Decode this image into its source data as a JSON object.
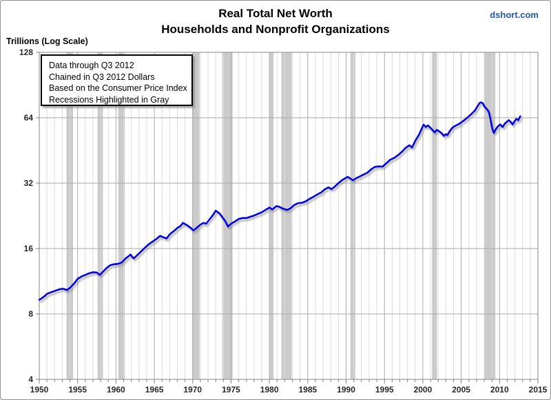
{
  "chart_data": {
    "type": "line",
    "title": "Real Total Net Worth",
    "subtitle": "Households and Nonprofit Organizations",
    "watermark": "dshort.com",
    "ylabel": "Trillions (Log Scale)",
    "y_scale": "log2",
    "x_range": [
      1950,
      2015
    ],
    "y_range": [
      4,
      128
    ],
    "y_ticks": [
      4,
      8,
      16,
      32,
      64,
      128
    ],
    "x_tick_step_major": 5,
    "x_tick_step_minor": 1,
    "grid": true,
    "legend_position": "none",
    "annotation": [
      "Data through  Q3 2012",
      "Chained in Q3 2012 Dollars",
      "Based on the Consumer Price Index",
      "Recessions Highlighted in Gray"
    ],
    "recessions": [
      [
        1953.55,
        1954.4
      ],
      [
        1957.6,
        1958.3
      ],
      [
        1960.3,
        1961.15
      ],
      [
        1969.95,
        1970.9
      ],
      [
        1973.85,
        1975.2
      ],
      [
        1980.05,
        1980.55
      ],
      [
        1981.55,
        1982.9
      ],
      [
        1990.55,
        1991.2
      ],
      [
        2001.2,
        2001.85
      ],
      [
        2007.95,
        2009.45
      ]
    ],
    "series": [
      {
        "name": "Real Total Net Worth (trillions of Q3 2012 dollars)",
        "color": "#0000E0",
        "points": [
          [
            1950.0,
            9.3
          ],
          [
            1950.25,
            9.4
          ],
          [
            1950.5,
            9.55
          ],
          [
            1950.75,
            9.7
          ],
          [
            1951.0,
            9.9
          ],
          [
            1951.5,
            10.05
          ],
          [
            1952.0,
            10.2
          ],
          [
            1952.5,
            10.35
          ],
          [
            1953.0,
            10.45
          ],
          [
            1953.3,
            10.4
          ],
          [
            1953.6,
            10.3
          ],
          [
            1954.0,
            10.55
          ],
          [
            1954.5,
            11.0
          ],
          [
            1955.0,
            11.6
          ],
          [
            1955.5,
            11.9
          ],
          [
            1956.0,
            12.1
          ],
          [
            1956.5,
            12.3
          ],
          [
            1957.0,
            12.45
          ],
          [
            1957.5,
            12.4
          ],
          [
            1957.9,
            12.1
          ],
          [
            1958.3,
            12.5
          ],
          [
            1958.75,
            13.0
          ],
          [
            1959.25,
            13.4
          ],
          [
            1959.75,
            13.55
          ],
          [
            1960.25,
            13.6
          ],
          [
            1960.75,
            13.8
          ],
          [
            1961.25,
            14.4
          ],
          [
            1961.6,
            14.7
          ],
          [
            1961.9,
            15.0
          ],
          [
            1962.3,
            14.4
          ],
          [
            1962.75,
            14.9
          ],
          [
            1963.25,
            15.5
          ],
          [
            1963.75,
            16.1
          ],
          [
            1964.25,
            16.7
          ],
          [
            1964.75,
            17.2
          ],
          [
            1965.25,
            17.7
          ],
          [
            1965.75,
            18.3
          ],
          [
            1966.25,
            18.0
          ],
          [
            1966.6,
            17.8
          ],
          [
            1967.0,
            18.6
          ],
          [
            1967.5,
            19.2
          ],
          [
            1968.0,
            19.9
          ],
          [
            1968.4,
            20.3
          ],
          [
            1968.75,
            21.0
          ],
          [
            1969.25,
            20.5
          ],
          [
            1969.75,
            19.9
          ],
          [
            1970.1,
            19.4
          ],
          [
            1970.5,
            19.9
          ],
          [
            1971.0,
            20.6
          ],
          [
            1971.4,
            21.0
          ],
          [
            1971.75,
            20.8
          ],
          [
            1972.25,
            21.9
          ],
          [
            1972.75,
            23.1
          ],
          [
            1973.0,
            23.9
          ],
          [
            1973.5,
            23.2
          ],
          [
            1974.0,
            22.0
          ],
          [
            1974.3,
            21.2
          ],
          [
            1974.6,
            20.2
          ],
          [
            1975.0,
            20.8
          ],
          [
            1975.5,
            21.3
          ],
          [
            1976.0,
            21.9
          ],
          [
            1976.5,
            22.1
          ],
          [
            1977.0,
            22.1
          ],
          [
            1977.5,
            22.4
          ],
          [
            1978.0,
            22.7
          ],
          [
            1978.5,
            23.1
          ],
          [
            1979.0,
            23.5
          ],
          [
            1979.5,
            24.1
          ],
          [
            1980.0,
            24.7
          ],
          [
            1980.4,
            24.2
          ],
          [
            1980.9,
            25.1
          ],
          [
            1981.3,
            24.9
          ],
          [
            1981.8,
            24.4
          ],
          [
            1982.3,
            24.1
          ],
          [
            1982.75,
            24.5
          ],
          [
            1983.25,
            25.4
          ],
          [
            1983.75,
            25.9
          ],
          [
            1984.25,
            26.0
          ],
          [
            1984.75,
            26.4
          ],
          [
            1985.25,
            27.1
          ],
          [
            1985.75,
            27.7
          ],
          [
            1986.25,
            28.4
          ],
          [
            1986.75,
            29.0
          ],
          [
            1987.25,
            30.0
          ],
          [
            1987.7,
            30.6
          ],
          [
            1988.1,
            30.0
          ],
          [
            1988.5,
            30.8
          ],
          [
            1989.0,
            32.0
          ],
          [
            1989.5,
            33.1
          ],
          [
            1990.2,
            34.2
          ],
          [
            1990.9,
            33.0
          ],
          [
            1991.3,
            33.7
          ],
          [
            1991.75,
            34.3
          ],
          [
            1992.25,
            35.0
          ],
          [
            1992.75,
            35.7
          ],
          [
            1993.25,
            37.0
          ],
          [
            1993.75,
            38.0
          ],
          [
            1994.25,
            38.2
          ],
          [
            1994.75,
            38.1
          ],
          [
            1995.25,
            39.5
          ],
          [
            1995.75,
            41.0
          ],
          [
            1996.25,
            41.8
          ],
          [
            1996.75,
            43.0
          ],
          [
            1997.25,
            44.5
          ],
          [
            1997.75,
            46.5
          ],
          [
            1998.25,
            47.8
          ],
          [
            1998.6,
            46.7
          ],
          [
            1999.0,
            50.0
          ],
          [
            1999.5,
            53.5
          ],
          [
            1999.9,
            57.5
          ],
          [
            2000.1,
            59.5
          ],
          [
            2000.4,
            58.0
          ],
          [
            2000.65,
            59.0
          ],
          [
            2001.0,
            57.5
          ],
          [
            2001.3,
            56.0
          ],
          [
            2001.55,
            54.8
          ],
          [
            2001.8,
            56.3
          ],
          [
            2002.1,
            55.5
          ],
          [
            2002.4,
            54.5
          ],
          [
            2002.75,
            52.8
          ],
          [
            2003.0,
            53.8
          ],
          [
            2003.2,
            53.2
          ],
          [
            2003.5,
            55.5
          ],
          [
            2003.9,
            57.8
          ],
          [
            2004.25,
            58.8
          ],
          [
            2004.75,
            60.0
          ],
          [
            2005.25,
            61.8
          ],
          [
            2005.75,
            63.8
          ],
          [
            2006.25,
            66.2
          ],
          [
            2006.75,
            68.8
          ],
          [
            2007.1,
            72.0
          ],
          [
            2007.4,
            74.8
          ],
          [
            2007.6,
            75.3
          ],
          [
            2007.8,
            74.6
          ],
          [
            2008.1,
            71.5
          ],
          [
            2008.4,
            69.8
          ],
          [
            2008.6,
            68.0
          ],
          [
            2008.8,
            63.5
          ],
          [
            2009.05,
            57.0
          ],
          [
            2009.25,
            54.5
          ],
          [
            2009.5,
            56.5
          ],
          [
            2009.75,
            58.2
          ],
          [
            2010.1,
            59.6
          ],
          [
            2010.4,
            58.0
          ],
          [
            2010.7,
            60.2
          ],
          [
            2010.95,
            61.3
          ],
          [
            2011.2,
            62.4
          ],
          [
            2011.45,
            61.2
          ],
          [
            2011.7,
            59.6
          ],
          [
            2011.95,
            61.6
          ],
          [
            2012.2,
            63.2
          ],
          [
            2012.45,
            62.4
          ],
          [
            2012.7,
            65.0
          ]
        ]
      }
    ],
    "colors": {
      "line": "#0000E0",
      "line_shadow": "#787878",
      "recession_band": "#CBCBCB",
      "grid_minor": "#DCDCDC",
      "grid_major": "#A9A9A9",
      "plot_border": "#999999",
      "axis_tick": "#808080",
      "tick_label": "#262626",
      "watermark": "#1F5AA8"
    }
  }
}
